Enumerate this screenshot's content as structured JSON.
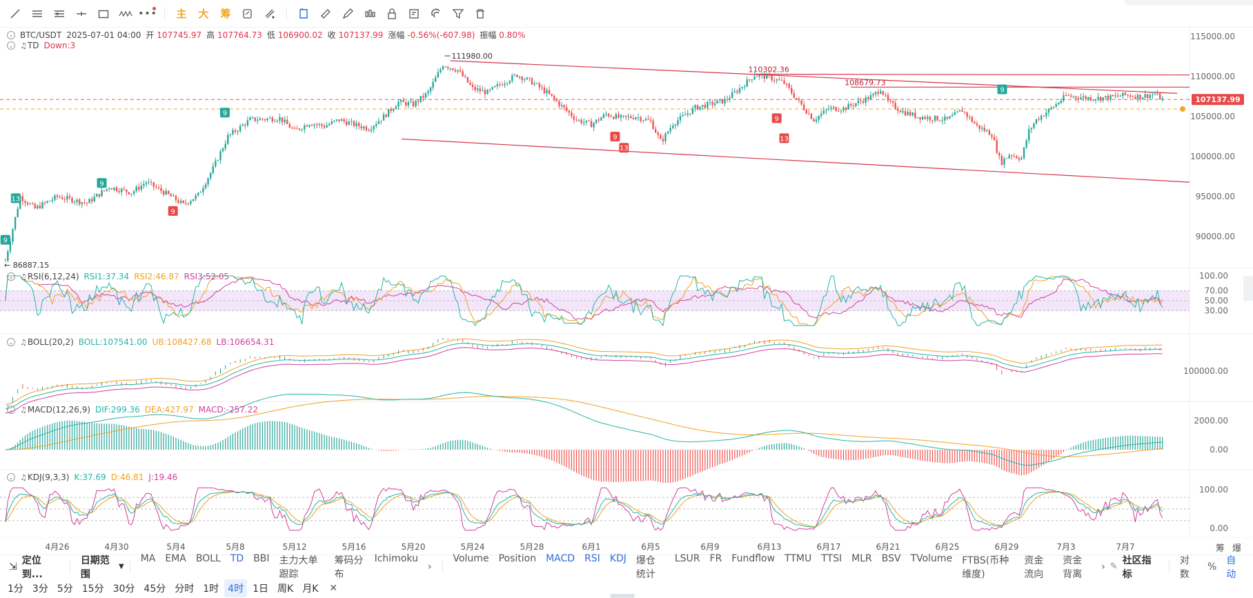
{
  "toolbar": {
    "icons": [
      "trend-line-icon",
      "horizontal-lines-icon",
      "parallel-channel-icon",
      "cross-line-icon",
      "rectangle-icon",
      "pattern-icon",
      "more-icon"
    ],
    "text_buttons": [
      "主",
      "大",
      "筹"
    ],
    "right_icons": [
      "copy-drawing-icon",
      "measure-icon",
      "pen-icon",
      "indicator-icon",
      "lock-icon",
      "template-icon",
      "magnet-icon",
      "filter-icon",
      "trash-icon"
    ]
  },
  "symbol": {
    "pair": "BTC/USDT",
    "datetime": "2025-07-01 04:00",
    "open_label": "开",
    "open": "107745.97",
    "high_label": "高",
    "high": "107764.73",
    "low_label": "低",
    "low": "106900.02",
    "close_label": "收",
    "close": "107137.99",
    "change_label": "涨幅",
    "change": "-0.56%(-607.98)",
    "amp_label": "振幅",
    "amp": "0.80%"
  },
  "td": {
    "name": "TD",
    "value": "Down:3"
  },
  "price_axis": {
    "ticks": [
      "115000.00",
      "110000.00",
      "105000.00",
      "100000.00",
      "95000.00",
      "90000.00"
    ],
    "current": "107137.99"
  },
  "annotations": {
    "high1": "111980.00",
    "high2": "110302.36",
    "high3": "108679.73",
    "low1": "86887.15"
  },
  "td_markers": [
    "13",
    "9",
    "9",
    "9",
    "9",
    "9",
    "13",
    "9",
    "13",
    "9"
  ],
  "rsi": {
    "name": "RSI(6,12,24)",
    "r1": "RSI1:37.34",
    "r2": "RSI2:46.87",
    "r3": "RSI3:52.05",
    "ticks": [
      "100.00",
      "70.00",
      "50.00",
      "30.00"
    ]
  },
  "boll": {
    "name": "BOLL(20,2)",
    "mid": "BOLL:107541.00",
    "ub": "UB:108427.68",
    "lb": "LB:106654.31",
    "ticks": [
      "100000.00"
    ]
  },
  "macd": {
    "name": "MACD(12,26,9)",
    "dif": "DIF:299.36",
    "dea": "DEA:427.97",
    "macd": "MACD:-257.22",
    "ticks": [
      "2000.00",
      "0.00"
    ]
  },
  "kdj": {
    "name": "KDJ(9,3,3)",
    "k": "K:37.69",
    "d": "D:46.81",
    "j": "J:19.46",
    "ticks": [
      "100.00",
      "0.00"
    ]
  },
  "x_labels": [
    "4月26",
    "4月30",
    "5月4",
    "5月8",
    "5月12",
    "5月16",
    "5月20",
    "5月24",
    "5月28",
    "6月1",
    "6月5",
    "6月9",
    "6月13",
    "6月17",
    "6月21",
    "6月25",
    "6月29",
    "7月3",
    "7月7"
  ],
  "x_right": [
    "筹",
    "爆"
  ],
  "bottom": {
    "locate": "定位到...",
    "range": "日期范围",
    "indicators_main": [
      "MA",
      "EMA",
      "BOLL",
      "TD",
      "BBI",
      "主力大单跟踪",
      "筹码分布",
      "Ichimoku"
    ],
    "indicators_sub": [
      "Volume",
      "Position",
      "MACD",
      "RSI",
      "KDJ",
      "爆仓统计",
      "LSUR",
      "FR",
      "Fundflow",
      "TTMU",
      "TTSI",
      "MLR",
      "BSV",
      "TVolume",
      "FTBS(币种维度)",
      "资金流向",
      "资金背离"
    ],
    "community": "社区指标",
    "log": "对数",
    "pct": "%",
    "auto": "自动",
    "timeframes": [
      "1分",
      "3分",
      "5分",
      "15分",
      "30分",
      "45分",
      "分时",
      "1时",
      "4时",
      "1日",
      "周K",
      "月K"
    ],
    "active_tf": "4时"
  },
  "colors": {
    "up": "#26a69a",
    "down": "#ef5350",
    "channel": "#d6334a",
    "accent": "#2b6cd9"
  }
}
